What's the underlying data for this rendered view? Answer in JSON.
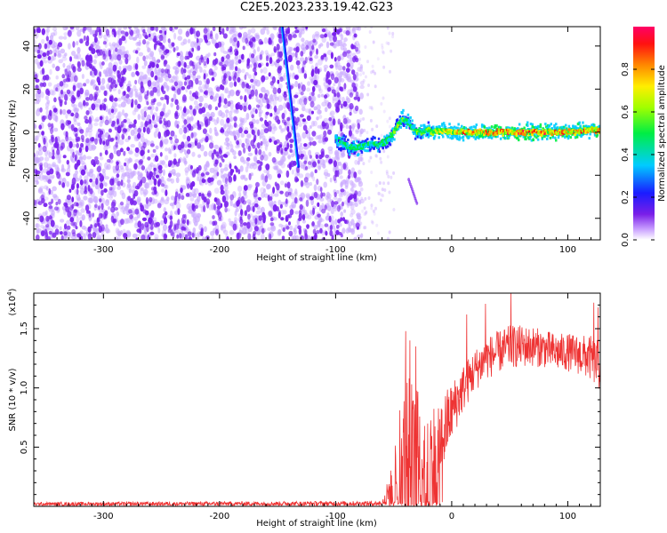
{
  "title": "C2E5.2023.233.19.42.G23",
  "colors": {
    "background": "#ffffff",
    "axis": "#000000",
    "snr_line": "#ee3333",
    "spectrogram_dots": "#7a22ee",
    "spectrogram_faint": "#c9a8ff"
  },
  "chart_data": [
    {
      "id": "spectrogram",
      "type": "heatmap",
      "title": "",
      "xlabel": "Height of straight line (km)",
      "ylabel": "Frequency (Hz)",
      "xlim": [
        -360,
        128
      ],
      "ylim": [
        -50,
        49
      ],
      "x_ticks": [
        -300,
        -200,
        -100,
        0,
        100
      ],
      "x_tick_labels": [
        "-300",
        "-200",
        "-100",
        "0",
        "100"
      ],
      "y_ticks": [
        -40,
        -20,
        0,
        20,
        40
      ],
      "y_tick_labels": [
        "-40",
        "-20",
        "0",
        "20",
        "40"
      ],
      "grid": false,
      "colorbar": {
        "label": "Normalized spectral amplitude",
        "range": [
          0,
          1
        ],
        "ticks": [
          0.0,
          0.2,
          0.4,
          0.6,
          0.8
        ],
        "tick_labels": [
          "0.0",
          "0.2",
          "0.4",
          "0.6",
          "0.8"
        ],
        "colormap": "rainbow (purple-blue-cyan-green-yellow-orange-red-magenta)"
      },
      "noise_region": {
        "x_range": [
          -360,
          -80
        ],
        "amplitude": 0.1
      },
      "streak": {
        "x": [
          -146,
          -132
        ],
        "y": [
          49,
          -16
        ],
        "amplitude": 0.25
      },
      "echo_trace": {
        "x": [
          -100,
          -95,
          -88,
          -80,
          -74,
          -68,
          -62,
          -56,
          -50,
          -46,
          -42,
          -38,
          -34,
          -30,
          -24,
          -16,
          -8,
          0,
          20,
          40,
          60,
          80,
          100,
          120,
          128
        ],
        "y": [
          -3,
          -5,
          -7,
          -7,
          -6,
          -5,
          -6,
          -4,
          0,
          4,
          6,
          5,
          2,
          0,
          1,
          0,
          1,
          0,
          0,
          0,
          0,
          0,
          0,
          1,
          1
        ],
        "amplitude": [
          0.35,
          0.4,
          0.4,
          0.45,
          0.45,
          0.45,
          0.45,
          0.45,
          0.5,
          0.5,
          0.5,
          0.45,
          0.45,
          0.5,
          0.55,
          0.6,
          0.7,
          0.75,
          0.8,
          0.85,
          0.85,
          0.85,
          0.85,
          0.8,
          0.8
        ]
      },
      "secondary_trace": {
        "x": [
          -37,
          -30
        ],
        "y": [
          -22,
          -33
        ],
        "amplitude": 0.1
      }
    },
    {
      "id": "snr",
      "type": "line",
      "title": "",
      "xlabel": "Height of straight line (km)",
      "ylabel": "SNR (10 * v/v)",
      "y_multiplier": "(x10",
      "y_multiplier_exp": "4",
      "y_multiplier_close": ")",
      "xlim": [
        -360,
        128
      ],
      "ylim": [
        0,
        18000
      ],
      "x_ticks": [
        -300,
        -200,
        -100,
        0,
        100
      ],
      "x_tick_labels": [
        "-300",
        "-200",
        "-100",
        "0",
        "100"
      ],
      "y_ticks": [
        5000,
        10000,
        15000
      ],
      "y_tick_labels": [
        "0.5",
        "1.0",
        "1.5"
      ],
      "grid": false,
      "envelope_x": [
        -360,
        -60,
        -52,
        -45,
        -38,
        -30,
        -22,
        -15,
        -8,
        0,
        10,
        20,
        30,
        40,
        50,
        60,
        70,
        80,
        90,
        100,
        110,
        120,
        128
      ],
      "envelope_mean": [
        200,
        250,
        1500,
        3500,
        4500,
        4500,
        4000,
        3500,
        6000,
        8000,
        10000,
        11500,
        12500,
        13000,
        13500,
        13500,
        13500,
        13300,
        13000,
        13000,
        12800,
        12500,
        11800
      ],
      "envelope_spread": [
        150,
        200,
        1800,
        5500,
        6500,
        6000,
        6000,
        5500,
        3500,
        2500,
        2000,
        1800,
        1800,
        1800,
        1800,
        1800,
        1700,
        1600,
        1600,
        1600,
        1700,
        1900,
        2200
      ],
      "peaks": [
        {
          "x": -39.5,
          "y": 14800
        },
        {
          "x": -36,
          "y": 14000
        },
        {
          "x": 51,
          "y": 18000
        },
        {
          "x": 29,
          "y": 17100
        },
        {
          "x": 122.5,
          "y": 17200
        },
        {
          "x": 126,
          "y": 16800
        },
        {
          "x": -31,
          "y": 13500
        },
        {
          "x": 13,
          "y": 16200
        }
      ]
    }
  ]
}
